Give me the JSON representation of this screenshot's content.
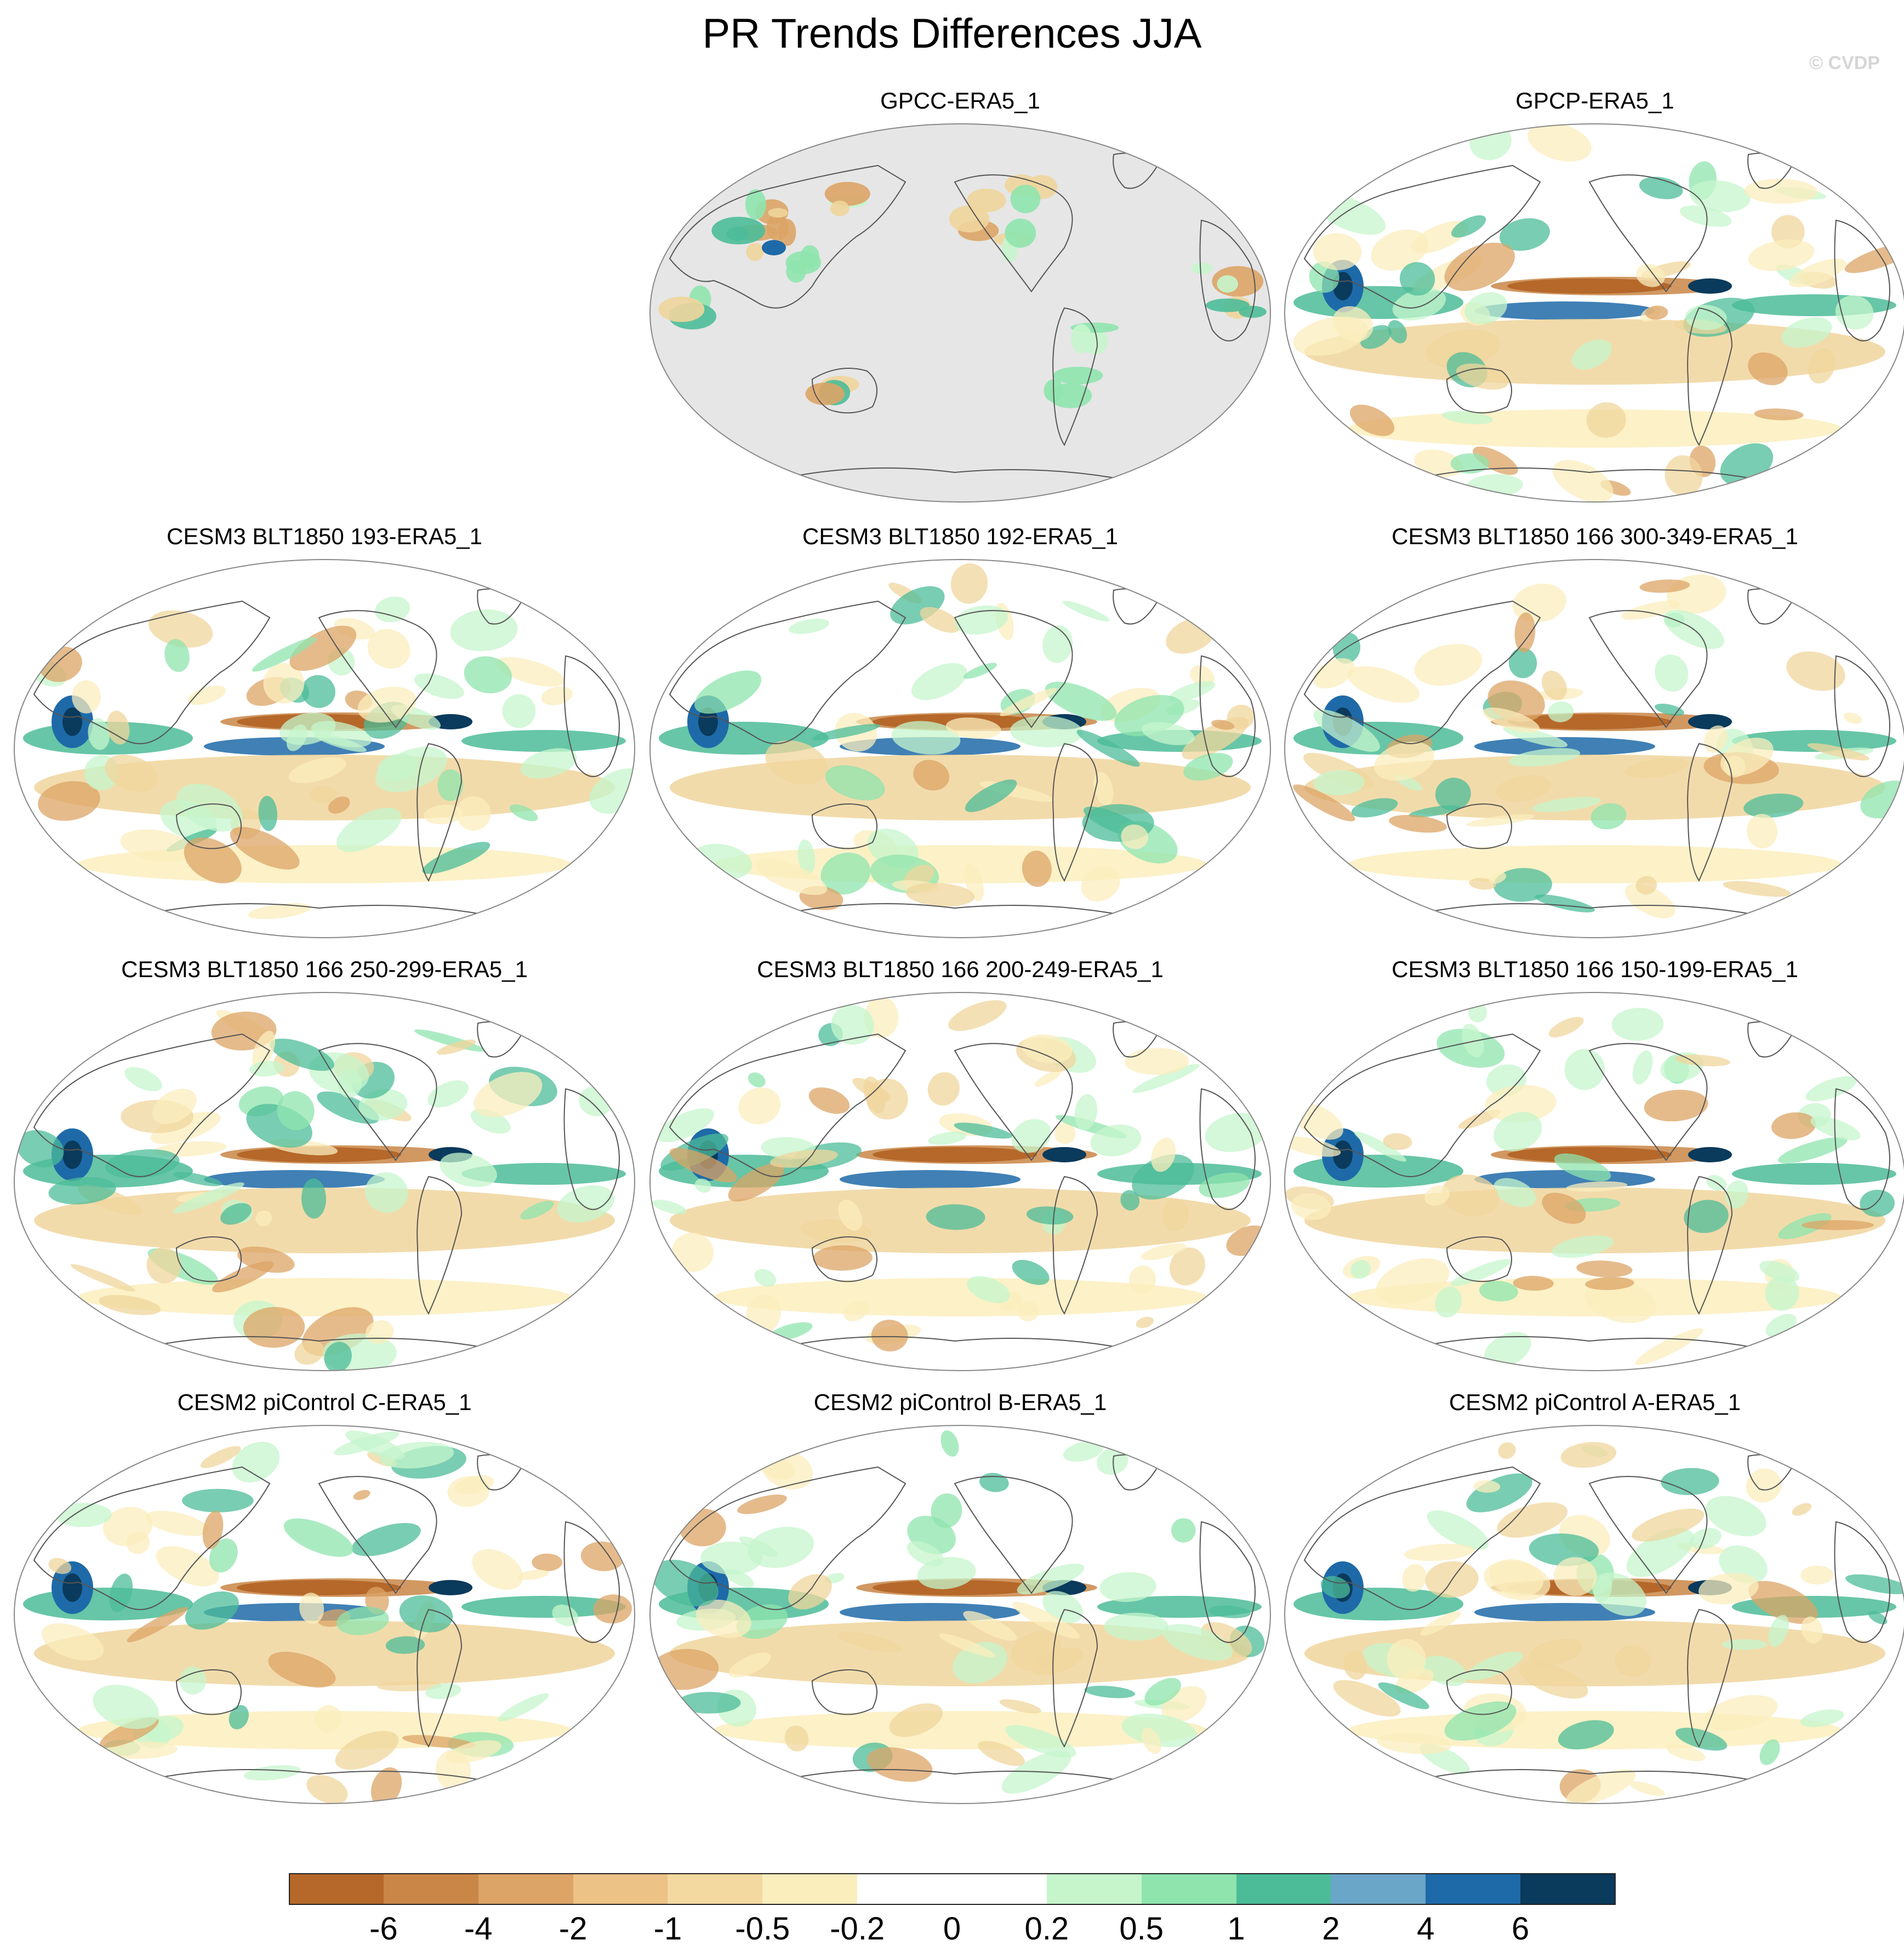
{
  "title": "PR Trends Differences JJA",
  "credit": "© CVDP",
  "panels": [
    {
      "title": "GPCC-ERA5_1",
      "land_only": true
    },
    {
      "title": "GPCP-ERA5_1",
      "land_only": false
    },
    {
      "title": "CESM3 BLT1850 193-ERA5_1",
      "land_only": false
    },
    {
      "title": "CESM3 BLT1850 192-ERA5_1",
      "land_only": false
    },
    {
      "title": "CESM3 BLT1850 166 300-349-ERA5_1",
      "land_only": false
    },
    {
      "title": "CESM3 BLT1850 166 250-299-ERA5_1",
      "land_only": false
    },
    {
      "title": "CESM3 BLT1850 166 200-249-ERA5_1",
      "land_only": false
    },
    {
      "title": "CESM3 BLT1850 166 150-199-ERA5_1",
      "land_only": false
    },
    {
      "title": "CESM2 piControl C-ERA5_1",
      "land_only": false
    },
    {
      "title": "CESM2 piControl B-ERA5_1",
      "land_only": false
    },
    {
      "title": "CESM2 piControl A-ERA5_1",
      "land_only": false
    }
  ],
  "colorbar": {
    "labels": [
      "-6",
      "-4",
      "-2",
      "-1",
      "-0.5",
      "-0.2",
      "0",
      "0.2",
      "0.5",
      "1",
      "2",
      "4",
      "6"
    ],
    "colors": [
      "#b5682a",
      "#c98647",
      "#dca466",
      "#ecc286",
      "#f3d9a0",
      "#fbeebd",
      "#ffffff",
      "#ffffff",
      "#c6f5cc",
      "#8fe4ae",
      "#4cbc98",
      "#6aa6c8",
      "#1e6aa8",
      "#0a3a5c"
    ]
  },
  "map_colors": {
    "strong_dry": "#c98647",
    "dry": "#dca466",
    "light_dry": "#f0d59c",
    "pale_dry": "#fbeebd",
    "light_wet": "#c6f5cc",
    "wet": "#8fe4ae",
    "teal": "#4cbc98",
    "blue": "#1e6aa8",
    "navy": "#0a3a5c",
    "missing": "#e6e6e6"
  }
}
